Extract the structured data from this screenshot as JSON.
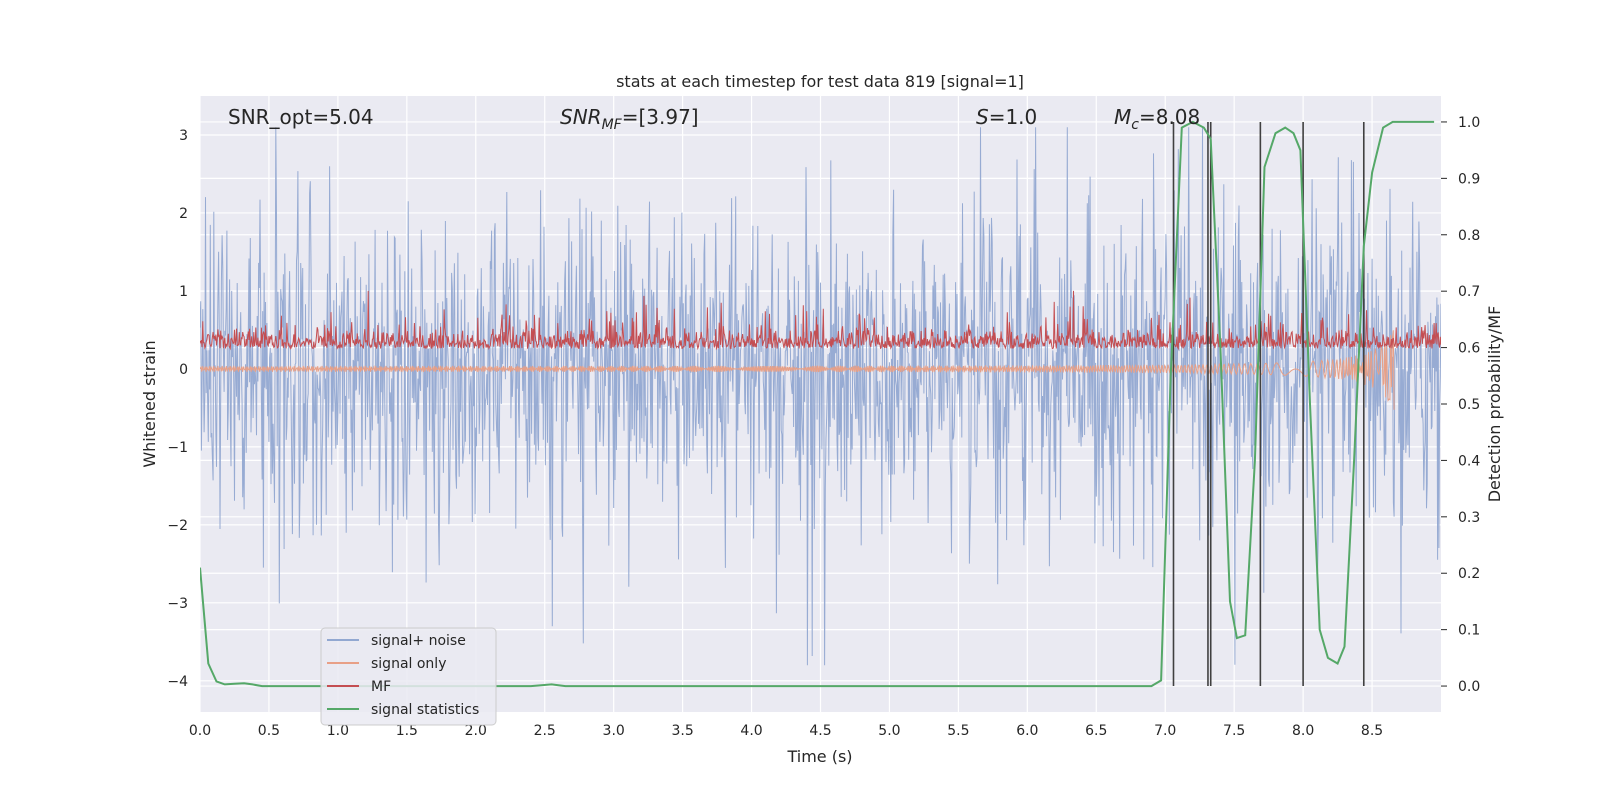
{
  "chart_data": {
    "type": "line",
    "title": "stats at each timestep for test data 819 [signal=1]",
    "xlabel": "Time (s)",
    "ylabel_left": "Whitened strain",
    "ylabel_right": "Detection probability/MF",
    "xlim": [
      0.0,
      9.0
    ],
    "ylim_left": [
      -4.4,
      3.5
    ],
    "ylim_right": [
      -0.046,
      1.046
    ],
    "x_ticks": [
      "0.0",
      "0.5",
      "1.0",
      "1.5",
      "2.0",
      "2.5",
      "3.0",
      "3.5",
      "4.0",
      "4.5",
      "5.0",
      "5.5",
      "6.0",
      "6.5",
      "7.0",
      "7.5",
      "8.0",
      "8.5"
    ],
    "x_tick_values": [
      0.0,
      0.5,
      1.0,
      1.5,
      2.0,
      2.5,
      3.0,
      3.5,
      4.0,
      4.5,
      5.0,
      5.5,
      6.0,
      6.5,
      7.0,
      7.5,
      8.0,
      8.5
    ],
    "y_left_ticks": [
      "3",
      "2",
      "1",
      "0",
      "−1",
      "−2",
      "−3",
      "−4"
    ],
    "y_left_tick_values": [
      3,
      2,
      1,
      0,
      -1,
      -2,
      -3,
      -4
    ],
    "y_right_ticks": [
      "1.0",
      "0.9",
      "0.8",
      "0.7",
      "0.6",
      "0.5",
      "0.4",
      "0.3",
      "0.2",
      "0.1",
      "0.0"
    ],
    "y_right_tick_values": [
      1.0,
      0.9,
      0.8,
      0.7,
      0.6,
      0.5,
      0.4,
      0.3,
      0.2,
      0.1,
      0.0
    ],
    "grid": true,
    "legend_position": "lower-left",
    "annotations": {
      "snr_opt": "SNR_opt=5.04",
      "snr_mf_main": "SNR",
      "snr_mf_sub": "MF",
      "snr_mf_rest": "=[3.97]",
      "s_main": "S",
      "s_rest": "=1.0",
      "mc_main": "M",
      "mc_sub": "c",
      "mc_rest": "=8.08"
    },
    "series": [
      {
        "name": "signal+ noise",
        "axis": "left",
        "color": "#92a8d1",
        "description_kind": "noise",
        "amplitude_envelope": [
          -3.8,
          3.1
        ]
      },
      {
        "name": "signal only",
        "axis": "left",
        "color": "#e8a087",
        "description_kind": "chirp",
        "x_range": [
          0.0,
          8.66
        ],
        "final_amplitude": 0.5
      },
      {
        "name": "MF",
        "axis": "left",
        "color": "#c44e52",
        "description_kind": "mf_noise",
        "baseline": 0.3,
        "peak_max": 1.0
      },
      {
        "name": "signal statistics",
        "axis": "right",
        "color": "#55a868",
        "x": [
          0.0,
          0.06,
          0.12,
          0.18,
          0.25,
          0.32,
          0.38,
          0.45,
          0.55,
          0.7,
          1.0,
          1.5,
          2.0,
          2.4,
          2.55,
          2.65,
          2.8,
          3.0,
          4.0,
          5.0,
          6.0,
          6.5,
          6.9,
          6.97,
          7.04,
          7.12,
          7.2,
          7.28,
          7.33,
          7.4,
          7.47,
          7.52,
          7.58,
          7.65,
          7.72,
          7.8,
          7.87,
          7.93,
          7.98,
          8.05,
          8.12,
          8.18,
          8.25,
          8.3,
          8.37,
          8.44,
          8.5,
          8.58,
          8.65,
          8.75,
          8.85,
          8.95
        ],
        "y": [
          0.21,
          0.04,
          0.008,
          0.003,
          0.004,
          0.005,
          0.003,
          0.0,
          0.0,
          0.0,
          0.0,
          0.0,
          0.0,
          0.0,
          0.003,
          0.0,
          0.0,
          0.0,
          0.0,
          0.0,
          0.0,
          0.0,
          0.0,
          0.01,
          0.55,
          0.99,
          1.0,
          0.99,
          0.97,
          0.6,
          0.15,
          0.085,
          0.09,
          0.4,
          0.92,
          0.98,
          0.99,
          0.98,
          0.95,
          0.5,
          0.1,
          0.05,
          0.04,
          0.07,
          0.4,
          0.78,
          0.91,
          0.99,
          1.0,
          1.0,
          1.0,
          1.0
        ]
      }
    ],
    "vertical_lines_x": [
      7.06,
      7.31,
      7.33,
      7.69,
      8.0,
      8.44
    ],
    "vertical_lines_range_right": [
      0.0,
      1.0
    ],
    "vertical_line_color": "#404040"
  }
}
